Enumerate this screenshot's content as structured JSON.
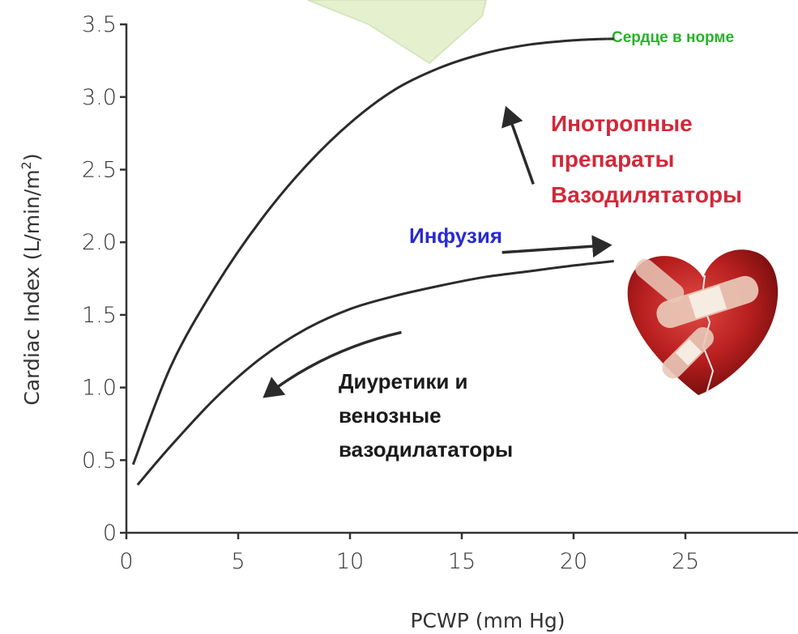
{
  "chart_data": {
    "type": "line",
    "xlabel": "PCWP (mm Hg)",
    "ylabel": "Cardiac Index (L/min/m",
    "ylabel_sup": "2",
    "ylabel_close": ")",
    "xlim": [
      0,
      30
    ],
    "ylim": [
      0,
      3.5
    ],
    "x_ticks": [
      0,
      5,
      10,
      15,
      20,
      25
    ],
    "y_ticks": [
      0,
      0.5,
      1.0,
      1.5,
      2.0,
      2.5,
      3.0,
      3.5
    ],
    "x_tick_labels": [
      "0",
      "5",
      "10",
      "15",
      "20",
      "25"
    ],
    "y_tick_labels": [
      "0",
      "0.5",
      "1.0",
      "1.5",
      "2.0",
      "2.5",
      "3.0",
      "3.5"
    ],
    "grid": false,
    "series": [
      {
        "name": "Сердце в норме",
        "color": "#2b2b2b",
        "points": [
          [
            0.3,
            0.47
          ],
          [
            2,
            1.15
          ],
          [
            4,
            1.7
          ],
          [
            6,
            2.15
          ],
          [
            8,
            2.52
          ],
          [
            10,
            2.82
          ],
          [
            12,
            3.05
          ],
          [
            14,
            3.2
          ],
          [
            16,
            3.3
          ],
          [
            18,
            3.36
          ],
          [
            20,
            3.39
          ],
          [
            21.5,
            3.4
          ]
        ]
      },
      {
        "name": "",
        "color": "#2b2b2b",
        "points": [
          [
            0.5,
            0.33
          ],
          [
            2,
            0.6
          ],
          [
            4,
            0.93
          ],
          [
            6,
            1.2
          ],
          [
            8,
            1.4
          ],
          [
            10,
            1.54
          ],
          [
            12,
            1.63
          ],
          [
            14,
            1.7
          ],
          [
            16,
            1.76
          ],
          [
            18,
            1.8
          ],
          [
            20,
            1.84
          ],
          [
            21.8,
            1.87
          ]
        ]
      }
    ],
    "annotations": {
      "normal": {
        "text": "Сердце в норме",
        "color": "#27b327"
      },
      "inotropes": {
        "lines": [
          "Инотропные",
          "препараты",
          "Вазодилятаторы"
        ],
        "color": "#d2283a"
      },
      "infusion": {
        "text": "Инфузия",
        "color": "#2a2ad0"
      },
      "diuretics": {
        "lines": [
          "Диуретики и",
          "венозные",
          "вазодилататоры"
        ],
        "color": "#1a1a1a"
      }
    },
    "arrows": [
      {
        "name": "inotropes-arrow",
        "from": [
          18.2,
          2.4
        ],
        "to": [
          17.0,
          2.92
        ]
      },
      {
        "name": "infusion-arrow",
        "from": [
          16.8,
          1.93
        ],
        "to": [
          21.6,
          1.98
        ]
      },
      {
        "name": "diuretics-arrow",
        "from": [
          12.3,
          1.38
        ],
        "to": [
          6.2,
          0.94
        ]
      },
      {
        "name": "normal-leader",
        "from": [
          21.5,
          3.4
        ],
        "to": [
          21.8,
          3.4
        ]
      }
    ]
  }
}
